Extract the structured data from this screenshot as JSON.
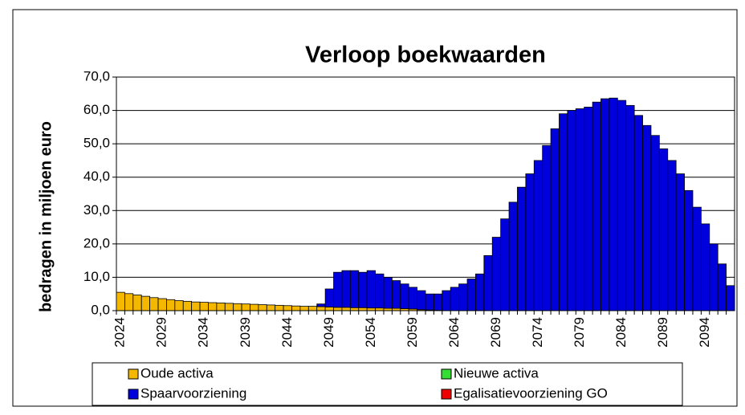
{
  "chart_data": {
    "type": "stacked_bar",
    "title": "Verloop boekwaarden",
    "y_label": "bedragen in miljoen euro",
    "categories": [
      "2024",
      null,
      null,
      null,
      null,
      "2029",
      null,
      null,
      null,
      null,
      "2034",
      null,
      null,
      null,
      null,
      "2039",
      null,
      null,
      null,
      null,
      "2044",
      null,
      null,
      null,
      null,
      "2049",
      null,
      null,
      null,
      null,
      "2054",
      null,
      null,
      null,
      null,
      "2059",
      null,
      null,
      null,
      null,
      "2064",
      null,
      null,
      null,
      null,
      "2069",
      null,
      null,
      null,
      null,
      "2074",
      null,
      null,
      null,
      null,
      "2079",
      null,
      null,
      null,
      null,
      "2084",
      null,
      null,
      null,
      null,
      "2089",
      null,
      null,
      null,
      null,
      "2094",
      null,
      null,
      null
    ],
    "series": [
      {
        "name": "Oude activa",
        "color": "#f5b800",
        "values": [
          5.5,
          5.1,
          4.7,
          4.3,
          3.9,
          3.6,
          3.3,
          3.0,
          2.8,
          2.6,
          2.5,
          2.4,
          2.3,
          2.2,
          2.1,
          2.0,
          1.9,
          1.8,
          1.7,
          1.6,
          1.5,
          1.4,
          1.3,
          1.3,
          1.2,
          1.1,
          1.0,
          1.0,
          0.9,
          0.9,
          0.8,
          0.8,
          0.7,
          0.7,
          0.6,
          0.5,
          0.3,
          0.2,
          0.1,
          0,
          0,
          0,
          0,
          0,
          0,
          0,
          0,
          0,
          0,
          0,
          0,
          0,
          0,
          0,
          0,
          0,
          0,
          0,
          0,
          0,
          0,
          0,
          0,
          0,
          0,
          0,
          0,
          0,
          0,
          0,
          0,
          0,
          0,
          0
        ]
      },
      {
        "name": "Nieuwe activa",
        "color": "#33dd33",
        "values": [
          0,
          0,
          0,
          0,
          0,
          0,
          0,
          0,
          0,
          0,
          0,
          0,
          0,
          0,
          0,
          0,
          0,
          0,
          0,
          0,
          0,
          0,
          0,
          0,
          0,
          0,
          0,
          0,
          0,
          0,
          0,
          0,
          0,
          0,
          0,
          0,
          0,
          0,
          0,
          0,
          0,
          0,
          0,
          0,
          0,
          0,
          0,
          0,
          0,
          0,
          0,
          0,
          0,
          0,
          0,
          0,
          0,
          0,
          0,
          0,
          0,
          0,
          0,
          0,
          0,
          0,
          0,
          0,
          0,
          0,
          0,
          0,
          0,
          0
        ]
      },
      {
        "name": "Spaarvoorziening",
        "color": "#0000dd",
        "values": [
          0,
          0,
          0,
          0,
          0,
          0,
          0,
          0,
          0,
          0,
          0,
          0,
          0,
          0,
          0,
          0,
          0,
          0,
          0,
          0,
          0,
          0,
          0,
          0,
          0.8,
          5.4,
          10.5,
          11.0,
          11.1,
          10.6,
          11.2,
          10.2,
          9.3,
          8.3,
          7.4,
          6.5,
          5.7,
          4.8,
          4.9,
          6.0,
          7.0,
          8.0,
          9.5,
          11.0,
          16.5,
          22.0,
          27.5,
          32.5,
          37.0,
          41.0,
          45.0,
          49.5,
          54.5,
          59.0,
          60.0,
          60.5,
          61.0,
          62.5,
          63.5,
          63.7,
          63.0,
          61.5,
          58.5,
          55.5,
          52.5,
          48.5,
          45.0,
          41.0,
          36.0,
          31.0,
          26.0,
          20.0,
          14.0,
          7.5
        ]
      },
      {
        "name": "Egalisatievoorziening GO",
        "color": "#ee0000",
        "values": [
          0,
          0,
          0,
          0,
          0,
          0,
          0,
          0,
          0,
          0,
          0,
          0,
          0,
          0,
          0,
          0,
          0,
          0,
          0,
          0,
          0,
          0,
          0,
          0,
          0,
          0,
          0,
          0,
          0,
          0,
          0,
          0,
          0,
          0,
          0,
          0,
          0,
          0,
          0,
          0,
          0,
          0,
          0,
          0,
          0,
          0,
          0,
          0,
          0,
          0,
          0,
          0,
          0,
          0,
          0,
          0,
          0,
          0,
          0,
          0,
          0,
          0,
          0,
          0,
          0,
          0,
          0,
          0,
          0,
          0,
          0,
          0,
          0,
          0
        ]
      }
    ],
    "ylim": [
      0,
      70
    ],
    "yticks": [
      {
        "value": 0,
        "label": "0,0"
      },
      {
        "value": 10,
        "label": "10,0"
      },
      {
        "value": 20,
        "label": "20,0"
      },
      {
        "value": 30,
        "label": "30,0"
      },
      {
        "value": 40,
        "label": "40,0"
      },
      {
        "value": 50,
        "label": "50,0"
      },
      {
        "value": 60,
        "label": "60,0"
      },
      {
        "value": 70,
        "label": "70,0"
      }
    ],
    "grid": true,
    "legend": "bottom"
  }
}
